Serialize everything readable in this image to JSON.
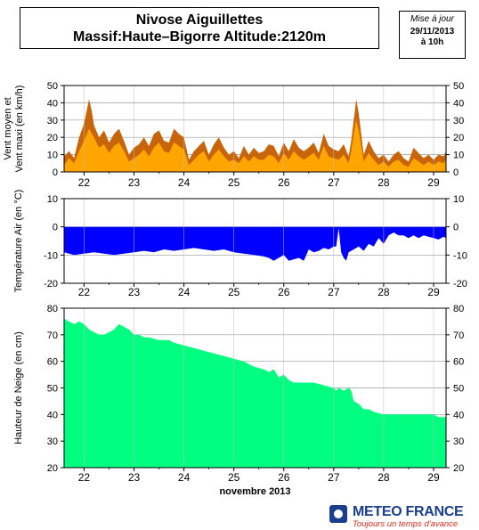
{
  "header": {
    "title_line1": "Nivose Aiguillettes",
    "title_line2": "Massif:Haute–Bigorre Altitude:2120m",
    "update_label": "Mise à jour",
    "update_date": "29/11/2013",
    "update_time": "à 10h"
  },
  "logo": {
    "name": "METEO FRANCE",
    "tagline": "Toujours un temps d'avance"
  },
  "chart_data": [
    {
      "type": "area",
      "ylabel_line1": "Vent moyen et",
      "ylabel_line2": "Vent maxi (en km/h)",
      "ylim": [
        0,
        50
      ],
      "yticks": [
        0,
        10,
        20,
        30,
        40,
        50
      ],
      "xlim": [
        21.6,
        29.25
      ],
      "xticks": [
        22,
        23,
        24,
        25,
        26,
        27,
        28,
        29
      ],
      "grid": true,
      "colors": {
        "max": "#c8650a",
        "mean": "#ffa500",
        "grid": "#999999"
      },
      "series": [
        {
          "key": "max",
          "x": [
            21.6,
            21.7,
            21.8,
            21.9,
            22.0,
            22.05,
            22.1,
            22.15,
            22.2,
            22.3,
            22.4,
            22.5,
            22.6,
            22.7,
            22.8,
            22.9,
            23.0,
            23.1,
            23.2,
            23.3,
            23.4,
            23.5,
            23.6,
            23.7,
            23.8,
            23.9,
            24.0,
            24.1,
            24.2,
            24.3,
            24.4,
            24.5,
            24.6,
            24.7,
            24.8,
            24.9,
            25.0,
            25.1,
            25.2,
            25.3,
            25.4,
            25.5,
            25.6,
            25.7,
            25.8,
            25.9,
            26.0,
            26.1,
            26.2,
            26.3,
            26.4,
            26.5,
            26.6,
            26.7,
            26.8,
            26.9,
            27.0,
            27.1,
            27.2,
            27.3,
            27.35,
            27.4,
            27.45,
            27.5,
            27.6,
            27.7,
            27.8,
            27.9,
            28.0,
            28.1,
            28.2,
            28.3,
            28.4,
            28.5,
            28.6,
            28.7,
            28.8,
            28.9,
            29.0,
            29.1,
            29.2,
            29.25
          ],
          "y": [
            9,
            12,
            8,
            20,
            28,
            35,
            42,
            36,
            27,
            20,
            24,
            17,
            22,
            25,
            18,
            10,
            14,
            16,
            20,
            15,
            22,
            24,
            18,
            17,
            25,
            22,
            20,
            7,
            12,
            15,
            18,
            10,
            16,
            20,
            14,
            10,
            12,
            8,
            15,
            10,
            14,
            11,
            12,
            16,
            15,
            9,
            17,
            12,
            19,
            14,
            12,
            14,
            17,
            11,
            22,
            15,
            13,
            12,
            16,
            9,
            18,
            30,
            42,
            34,
            10,
            18,
            12,
            8,
            10,
            6,
            10,
            12,
            8,
            6,
            14,
            11,
            8,
            10,
            7,
            10,
            9,
            12
          ]
        },
        {
          "key": "mean",
          "x": [
            21.6,
            21.7,
            21.8,
            21.9,
            22.0,
            22.1,
            22.2,
            22.3,
            22.4,
            22.5,
            22.6,
            22.7,
            22.8,
            22.9,
            23.0,
            23.1,
            23.2,
            23.3,
            23.4,
            23.5,
            23.6,
            23.7,
            23.8,
            23.9,
            24.0,
            24.1,
            24.2,
            24.3,
            24.4,
            24.5,
            24.6,
            24.7,
            24.8,
            24.9,
            25.0,
            25.1,
            25.2,
            25.3,
            25.4,
            25.5,
            25.6,
            25.7,
            25.8,
            25.9,
            26.0,
            26.1,
            26.2,
            26.3,
            26.4,
            26.5,
            26.6,
            26.7,
            26.8,
            26.9,
            27.0,
            27.1,
            27.2,
            27.3,
            27.35,
            27.4,
            27.45,
            27.5,
            27.6,
            27.7,
            27.8,
            27.9,
            28.0,
            28.1,
            28.2,
            28.3,
            28.4,
            28.5,
            28.6,
            28.7,
            28.8,
            28.9,
            29.0,
            29.1,
            29.2,
            29.25
          ],
          "y": [
            4,
            8,
            5,
            12,
            18,
            25,
            20,
            14,
            16,
            11,
            15,
            17,
            12,
            6,
            8,
            10,
            13,
            9,
            14,
            17,
            12,
            11,
            17,
            15,
            13,
            4,
            7,
            10,
            12,
            6,
            10,
            13,
            9,
            6,
            7,
            5,
            9,
            6,
            9,
            7,
            7,
            10,
            9,
            5,
            11,
            7,
            12,
            9,
            7,
            9,
            11,
            7,
            15,
            9,
            8,
            7,
            10,
            5,
            12,
            22,
            30,
            24,
            6,
            11,
            7,
            4,
            6,
            3,
            6,
            7,
            4,
            3,
            8,
            6,
            4,
            6,
            4,
            6,
            5,
            7
          ]
        }
      ]
    },
    {
      "type": "area",
      "ylabel": "Température Air (en °C)",
      "ylim": [
        -20,
        10
      ],
      "yticks": [
        -20,
        -10,
        0,
        10
      ],
      "xlim": [
        21.6,
        29.25
      ],
      "xticks": [
        22,
        23,
        24,
        25,
        26,
        27,
        28,
        29
      ],
      "grid": true,
      "colors": {
        "fill": "#0000ff"
      },
      "series": [
        {
          "key": "temp",
          "x": [
            21.6,
            21.8,
            22.0,
            22.2,
            22.4,
            22.6,
            22.8,
            23.0,
            23.2,
            23.4,
            23.6,
            23.8,
            24.0,
            24.2,
            24.4,
            24.6,
            24.8,
            25.0,
            25.2,
            25.4,
            25.6,
            25.7,
            25.8,
            25.9,
            26.0,
            26.1,
            26.2,
            26.3,
            26.4,
            26.5,
            26.6,
            26.7,
            26.8,
            26.9,
            27.0,
            27.05,
            27.1,
            27.15,
            27.2,
            27.25,
            27.3,
            27.4,
            27.5,
            27.6,
            27.7,
            27.8,
            27.9,
            28.0,
            28.1,
            28.2,
            28.3,
            28.4,
            28.5,
            28.6,
            28.7,
            28.8,
            28.9,
            29.0,
            29.1,
            29.2,
            29.25
          ],
          "y": [
            -9,
            -10,
            -9.5,
            -9,
            -9.5,
            -10,
            -9.5,
            -9,
            -8.5,
            -9,
            -8,
            -8.5,
            -8,
            -7.5,
            -8,
            -8.5,
            -8,
            -9,
            -9.5,
            -10,
            -10.5,
            -11,
            -12,
            -11,
            -10,
            -12,
            -11.5,
            -11,
            -12,
            -8,
            -9,
            -8.5,
            -7.5,
            -8,
            -7,
            -7,
            -0.5,
            -9,
            -11,
            -12,
            -9,
            -8,
            -7,
            -8.5,
            -6,
            -7,
            -4,
            -6,
            -3,
            -2,
            -3,
            -3,
            -4,
            -3,
            -4,
            -3,
            -3.5,
            -4,
            -4.5,
            -3.5,
            -4
          ]
        }
      ]
    },
    {
      "type": "area",
      "ylabel": "Hauteur de Neige (en cm)",
      "xlabel": "novembre 2013",
      "ylim": [
        20,
        80
      ],
      "yticks": [
        20,
        30,
        40,
        50,
        60,
        70,
        80
      ],
      "xlim": [
        21.6,
        29.25
      ],
      "xticks": [
        22,
        23,
        24,
        25,
        26,
        27,
        28,
        29
      ],
      "grid": true,
      "colors": {
        "fill": "#00ff80"
      },
      "series": [
        {
          "key": "snow",
          "x": [
            21.6,
            21.7,
            21.8,
            21.9,
            22.0,
            22.1,
            22.2,
            22.3,
            22.4,
            22.5,
            22.6,
            22.7,
            22.8,
            22.9,
            23.0,
            23.1,
            23.2,
            23.3,
            23.5,
            23.7,
            23.8,
            24.0,
            24.2,
            24.4,
            24.6,
            24.8,
            25.0,
            25.2,
            25.4,
            25.6,
            25.7,
            25.8,
            25.9,
            26.0,
            26.1,
            26.2,
            26.4,
            26.6,
            26.8,
            27.0,
            27.05,
            27.1,
            27.2,
            27.3,
            27.35,
            27.4,
            27.5,
            27.6,
            27.7,
            27.8,
            28.0,
            28.2,
            28.4,
            28.6,
            28.8,
            29.0,
            29.1,
            29.25
          ],
          "y": [
            76,
            75,
            74,
            75,
            74,
            72,
            71,
            70,
            70,
            71,
            72,
            74,
            73,
            72,
            70,
            70,
            69,
            69,
            68,
            68,
            67,
            66,
            65,
            64,
            63,
            62,
            61,
            60,
            58,
            57,
            56,
            57,
            54,
            55,
            53,
            52,
            52,
            52,
            51,
            50,
            49,
            50,
            49,
            50,
            49,
            45,
            44,
            42,
            42,
            41,
            40,
            40,
            40,
            40,
            40,
            40,
            39,
            39
          ]
        }
      ]
    }
  ]
}
